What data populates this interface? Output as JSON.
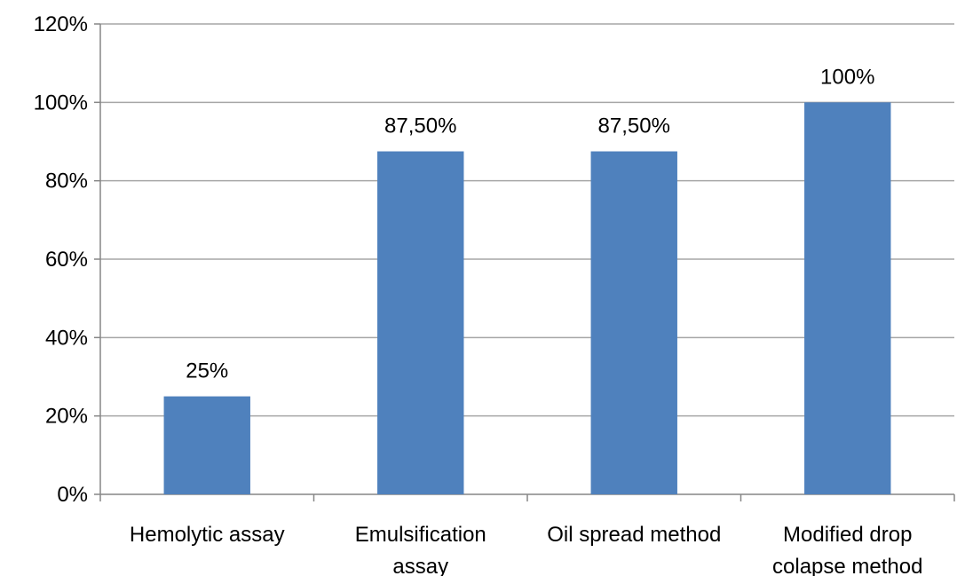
{
  "chart_data": {
    "type": "bar",
    "title": "",
    "xlabel": "",
    "ylabel": "",
    "categories": [
      [
        "Hemolytic assay"
      ],
      [
        "Emulsification",
        "assay"
      ],
      [
        "Oil spread method"
      ],
      [
        "Modified drop",
        "colapse method"
      ]
    ],
    "values": [
      25,
      87.5,
      87.5,
      100
    ],
    "data_labels": [
      "25%",
      "87,50%",
      "87,50%",
      "100%"
    ],
    "ylim": [
      0,
      120
    ],
    "yticks": [
      0,
      20,
      40,
      60,
      80,
      100,
      120
    ],
    "ytick_labels": [
      "0%",
      "20%",
      "40%",
      "60%",
      "80%",
      "100%",
      "120%"
    ],
    "grid": true,
    "legend": "none",
    "bar_color": "#4f81bd",
    "grid_color": "#a6a6a6"
  }
}
